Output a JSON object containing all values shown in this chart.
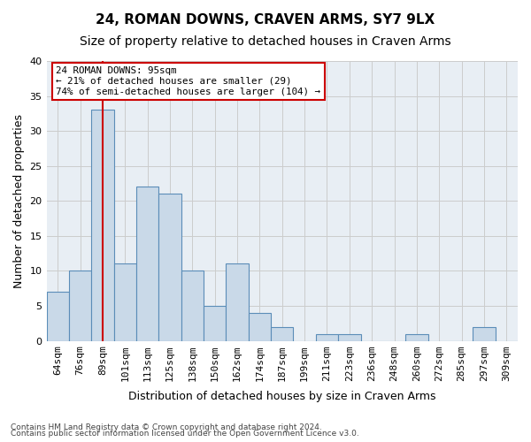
{
  "title": "24, ROMAN DOWNS, CRAVEN ARMS, SY7 9LX",
  "subtitle": "Size of property relative to detached houses in Craven Arms",
  "xlabel": "Distribution of detached houses by size in Craven Arms",
  "ylabel": "Number of detached properties",
  "footnote1": "Contains HM Land Registry data © Crown copyright and database right 2024.",
  "footnote2": "Contains public sector information licensed under the Open Government Licence v3.0.",
  "bins": [
    "64sqm",
    "76sqm",
    "89sqm",
    "101sqm",
    "113sqm",
    "125sqm",
    "138sqm",
    "150sqm",
    "162sqm",
    "174sqm",
    "187sqm",
    "199sqm",
    "211sqm",
    "223sqm",
    "236sqm",
    "248sqm",
    "260sqm",
    "272sqm",
    "285sqm",
    "297sqm",
    "309sqm"
  ],
  "values": [
    7,
    10,
    33,
    11,
    22,
    21,
    10,
    5,
    11,
    4,
    2,
    0,
    1,
    1,
    0,
    0,
    1,
    0,
    0,
    2,
    0
  ],
  "bar_color": "#c9d9e8",
  "bar_edge_color": "#5b8db8",
  "vline_x": 2,
  "vline_color": "#cc0000",
  "annotation_text": "24 ROMAN DOWNS: 95sqm\n← 21% of detached houses are smaller (29)\n74% of semi-detached houses are larger (104) →",
  "annotation_box_color": "#ffffff",
  "annotation_box_edge": "#cc0000",
  "ylim": [
    0,
    40
  ],
  "yticks": [
    0,
    5,
    10,
    15,
    20,
    25,
    30,
    35,
    40
  ],
  "grid_color": "#cccccc",
  "bg_color": "#e8eef4",
  "title_fontsize": 11,
  "subtitle_fontsize": 10,
  "axis_label_fontsize": 9
}
